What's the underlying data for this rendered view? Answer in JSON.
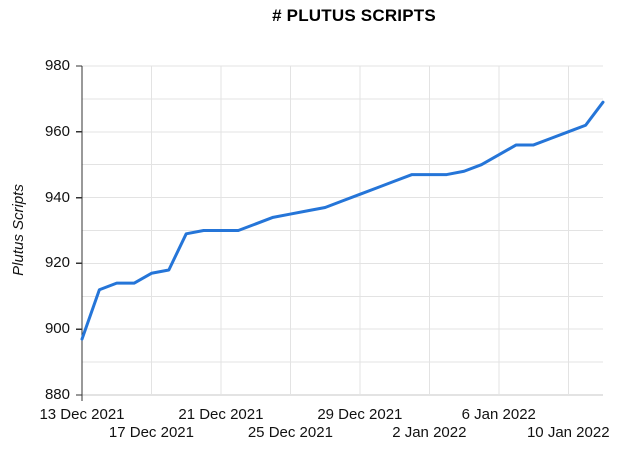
{
  "title": "# PLUTUS SCRIPTS",
  "colors": {
    "line": "#2575d8",
    "grid": "#e3e3e3",
    "grid_bottom": "#c7c7c7",
    "axis": "#333333",
    "text": "#111111",
    "background": "#ffffff"
  },
  "chart_data": {
    "type": "line",
    "title": "# PLUTUS SCRIPTS",
    "xlabel": "",
    "ylabel": "Plutus Scripts",
    "legend": "none",
    "grid": true,
    "ylim": [
      880,
      980
    ],
    "y_gridline_step": 10,
    "y_tick_labels": [
      "880",
      "900",
      "920",
      "940",
      "960",
      "980"
    ],
    "y_tick_values": [
      880,
      900,
      920,
      940,
      960,
      980
    ],
    "x": [
      "13 Dec 2021",
      "14 Dec 2021",
      "15 Dec 2021",
      "16 Dec 2021",
      "17 Dec 2021",
      "18 Dec 2021",
      "19 Dec 2021",
      "20 Dec 2021",
      "21 Dec 2021",
      "22 Dec 2021",
      "23 Dec 2021",
      "24 Dec 2021",
      "25 Dec 2021",
      "26 Dec 2021",
      "27 Dec 2021",
      "28 Dec 2021",
      "29 Dec 2021",
      "30 Dec 2021",
      "31 Dec 2021",
      "1 Jan 2022",
      "2 Jan 2022",
      "3 Jan 2022",
      "4 Jan 2022",
      "5 Jan 2022",
      "6 Jan 2022",
      "7 Jan 2022",
      "8 Jan 2022",
      "9 Jan 2022",
      "10 Jan 2022",
      "11 Jan 2022",
      "12 Jan 2022"
    ],
    "series": [
      {
        "name": "Plutus Scripts",
        "values": [
          897,
          912,
          914,
          914,
          917,
          918,
          929,
          930,
          930,
          930,
          932,
          934,
          935,
          936,
          937,
          939,
          941,
          943,
          945,
          947,
          947,
          947,
          948,
          950,
          953,
          956,
          956,
          958,
          960,
          962,
          969
        ]
      }
    ],
    "x_ticks": [
      {
        "label": "13 Dec 2021",
        "day": 0,
        "row": 1
      },
      {
        "label": "17 Dec 2021",
        "day": 4,
        "row": 2
      },
      {
        "label": "21 Dec 2021",
        "day": 8,
        "row": 1
      },
      {
        "label": "25 Dec 2021",
        "day": 12,
        "row": 2
      },
      {
        "label": "29 Dec 2021",
        "day": 16,
        "row": 1
      },
      {
        "label": "2 Jan 2022",
        "day": 20,
        "row": 2
      },
      {
        "label": "6 Jan 2022",
        "day": 24,
        "row": 1
      },
      {
        "label": "10 Jan 2022",
        "day": 28,
        "row": 2
      }
    ]
  }
}
